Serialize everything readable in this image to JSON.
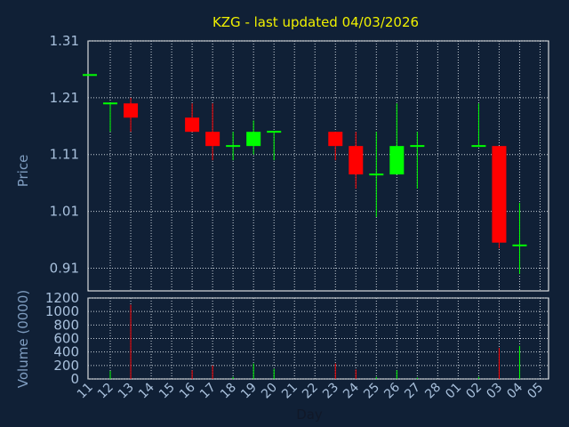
{
  "chart_data": {
    "type": "candlestick",
    "title": "KZG - last updated 04/03/2026",
    "xlabel": "Day",
    "x_tick_labels": [
      "11",
      "12",
      "13",
      "14",
      "15",
      "16",
      "17",
      "18",
      "19",
      "20",
      "21",
      "22",
      "23",
      "24",
      "25",
      "26",
      "27",
      "28",
      "01",
      "02",
      "03",
      "04",
      "05"
    ],
    "price_panel": {
      "ylabel": "Price",
      "ylim": [
        0.87,
        1.31
      ],
      "y_ticks": [
        "0.91",
        "1.01",
        "1.11",
        "1.21",
        "1.31"
      ],
      "grid": true
    },
    "volume_panel": {
      "ylabel": "Volume (0000)",
      "ylim": [
        0,
        1200
      ],
      "y_ticks": [
        "0",
        "200",
        "400",
        "600",
        "800",
        "1000",
        "1200"
      ],
      "grid": true
    },
    "colors": {
      "up": "#00ff00",
      "down": "#ff0000",
      "background": "#102036",
      "title": "#f0f000"
    },
    "candles": [
      {
        "day": "11",
        "open": 1.25,
        "high": 1.25,
        "low": 1.25,
        "close": 1.25,
        "volume": 0
      },
      {
        "day": "12",
        "open": 1.2,
        "high": 1.2,
        "low": 1.15,
        "close": 1.2,
        "volume": 120
      },
      {
        "day": "13",
        "open": 1.2,
        "high": 1.21,
        "low": 1.15,
        "close": 1.175,
        "volume": 1100
      },
      {
        "day": "16",
        "open": 1.175,
        "high": 1.2,
        "low": 1.15,
        "close": 1.15,
        "volume": 130
      },
      {
        "day": "17",
        "open": 1.15,
        "high": 1.2,
        "low": 1.1,
        "close": 1.125,
        "volume": 200
      },
      {
        "day": "18",
        "open": 1.125,
        "high": 1.15,
        "low": 1.1,
        "close": 1.125,
        "volume": 30
      },
      {
        "day": "19",
        "open": 1.125,
        "high": 1.17,
        "low": 1.11,
        "close": 1.15,
        "volume": 230
      },
      {
        "day": "20",
        "open": 1.15,
        "high": 1.15,
        "low": 1.1,
        "close": 1.15,
        "volume": 150
      },
      {
        "day": "23",
        "open": 1.15,
        "high": 1.15,
        "low": 1.1,
        "close": 1.125,
        "volume": 230
      },
      {
        "day": "24",
        "open": 1.125,
        "high": 1.15,
        "low": 1.05,
        "close": 1.075,
        "volume": 140
      },
      {
        "day": "25",
        "open": 1.075,
        "high": 1.15,
        "low": 1.0,
        "close": 1.075,
        "volume": 30
      },
      {
        "day": "26",
        "open": 1.075,
        "high": 1.2,
        "low": 1.075,
        "close": 1.125,
        "volume": 130
      },
      {
        "day": "27",
        "open": 1.125,
        "high": 1.15,
        "low": 1.05,
        "close": 1.125,
        "volume": 20
      },
      {
        "day": "02",
        "open": 1.125,
        "high": 1.2,
        "low": 1.125,
        "close": 1.125,
        "volume": 30
      },
      {
        "day": "03",
        "open": 1.125,
        "high": 1.125,
        "low": 0.945,
        "close": 0.955,
        "volume": 460
      },
      {
        "day": "04",
        "open": 0.95,
        "high": 1.025,
        "low": 0.9,
        "close": 0.95,
        "volume": 490
      }
    ]
  }
}
